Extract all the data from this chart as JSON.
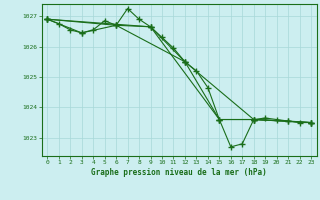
{
  "title": "Graphe pression niveau de la mer (hPa)",
  "bg_color": "#cceef0",
  "line_color": "#1a6e1a",
  "grid_color": "#a8d8d8",
  "xlim": [
    -0.5,
    23.5
  ],
  "ylim": [
    1022.4,
    1027.4
  ],
  "yticks": [
    1023,
    1024,
    1025,
    1026,
    1027
  ],
  "xticks": [
    0,
    1,
    2,
    3,
    4,
    5,
    6,
    7,
    8,
    9,
    10,
    11,
    12,
    13,
    14,
    15,
    16,
    17,
    18,
    19,
    20,
    21,
    22,
    23
  ],
  "lines": [
    {
      "x": [
        0,
        1,
        2,
        3,
        4,
        5,
        6,
        7,
        8,
        9,
        10,
        11,
        12,
        13,
        14,
        15,
        16,
        17,
        18,
        19,
        20,
        21,
        22,
        23
      ],
      "y": [
        1026.9,
        1026.75,
        1026.55,
        1026.45,
        1026.55,
        1026.85,
        1026.7,
        1027.25,
        1026.9,
        1026.65,
        1026.3,
        1025.95,
        1025.5,
        1025.2,
        1024.65,
        1023.6,
        1022.7,
        1022.8,
        1023.6,
        1023.65,
        1023.6,
        1023.55,
        1023.5,
        1023.5
      ]
    },
    {
      "x": [
        0,
        3,
        6,
        9,
        12,
        15,
        18,
        21,
        23
      ],
      "y": [
        1026.9,
        1026.45,
        1026.7,
        1026.65,
        1025.5,
        1023.6,
        1023.6,
        1023.55,
        1023.5
      ]
    },
    {
      "x": [
        0,
        6,
        12,
        18,
        23
      ],
      "y": [
        1026.9,
        1026.7,
        1025.5,
        1023.6,
        1023.5
      ]
    },
    {
      "x": [
        0,
        9,
        15,
        18,
        23
      ],
      "y": [
        1026.9,
        1026.65,
        1023.6,
        1023.6,
        1023.5
      ]
    }
  ]
}
